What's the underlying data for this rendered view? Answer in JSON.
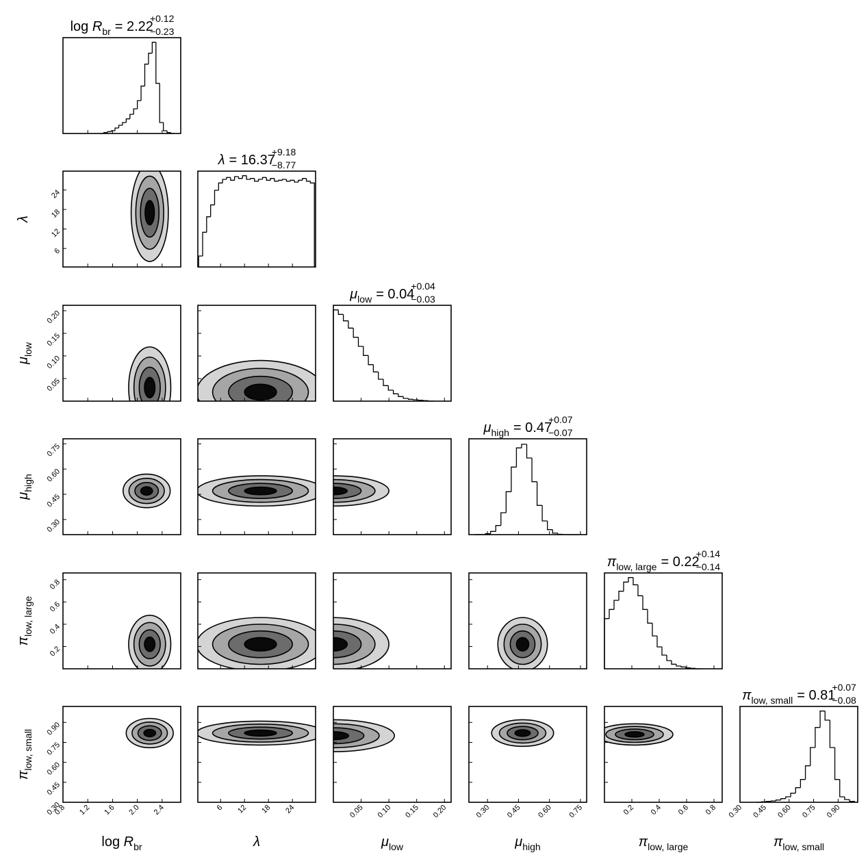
{
  "chart_data": {
    "type": "corner",
    "line_color": "#000000",
    "contour_fills": [
      "#d4d4d4",
      "#a6a6a6",
      "#6c6c6c",
      "#0a0a0a"
    ],
    "parameters": [
      {
        "prefix": "log ",
        "symbol": "R",
        "subscript": "br",
        "title": {
          "median": "= 2.22",
          "upper": "+0.12",
          "lower": "−0.23"
        },
        "lim": [
          0.8,
          2.7
        ],
        "ticks": [
          0.8,
          1.2,
          1.6,
          {
            "value": 2,
            "label": "2.0"
          },
          2.4
        ],
        "histogram": {
          "ylim": [
            0,
            105
          ],
          "bins": [
            1.4,
            1.46,
            1.52,
            1.58,
            1.64,
            1.7,
            1.76,
            1.82,
            1.88,
            1.94,
            2.0,
            2.06,
            2.12,
            2.18,
            2.24,
            2.3,
            2.36,
            2.42,
            2.48,
            2.54,
            2.6
          ],
          "counts": [
            0,
            1,
            2,
            3,
            6,
            9,
            12,
            16,
            21,
            27,
            36,
            52,
            76,
            88,
            100,
            55,
            12,
            3,
            1,
            0
          ]
        }
      },
      {
        "symbol": "λ",
        "title": {
          "median": "= 16.37",
          "upper": "+9.18",
          "lower": "−8.77"
        },
        "lim": [
          0.3,
          29.8
        ],
        "ticks": [
          6,
          12,
          18,
          24
        ],
        "histogram": {
          "ylim": [
            0,
            105
          ],
          "bins": [
            0.5,
            1.5,
            2.5,
            3.5,
            4.5,
            5.5,
            6.5,
            7.5,
            8.5,
            9.5,
            10.5,
            11.5,
            12.5,
            13.5,
            14.5,
            15.5,
            16.5,
            17.5,
            18.5,
            19.5,
            20.5,
            21.5,
            22.5,
            23.5,
            24.5,
            25.5,
            26.5,
            27.5,
            28.5,
            29.5
          ],
          "counts": [
            12,
            38,
            55,
            68,
            84,
            92,
            96,
            98,
            95,
            99,
            97,
            100,
            96,
            97,
            94,
            96,
            98,
            95,
            97,
            94,
            95,
            96,
            94,
            95,
            93,
            95,
            97,
            94,
            92
          ]
        }
      },
      {
        "symbol": "μ",
        "subscript": "low",
        "title": {
          "median": "= 0.04",
          "upper": "+0.04",
          "lower": "−0.03"
        },
        "lim": [
          0,
          0.212
        ],
        "ticks": [
          0.05,
          {
            "value": 0.1,
            "label": "0.10"
          },
          0.15,
          {
            "value": 0.2,
            "label": "0.20"
          }
        ],
        "histogram": {
          "ylim": [
            0,
            105
          ],
          "bins": [
            0,
            0.009,
            0.018,
            0.027,
            0.036,
            0.045,
            0.054,
            0.063,
            0.072,
            0.081,
            0.09,
            0.099,
            0.108,
            0.117,
            0.126,
            0.135,
            0.144,
            0.153,
            0.162,
            0.171,
            0.18
          ],
          "counts": [
            100,
            95,
            88,
            80,
            70,
            60,
            50,
            40,
            32,
            24,
            17,
            12,
            8,
            5,
            3,
            2,
            1.5,
            1,
            0.5,
            0
          ]
        }
      },
      {
        "symbol": "μ",
        "subscript": "high",
        "title": {
          "median": "= 0.47",
          "upper": "+0.07",
          "lower": "−0.07"
        },
        "lim": [
          0.21,
          0.78
        ],
        "ticks": [
          {
            "value": 0.3,
            "label": "0.30"
          },
          0.45,
          {
            "value": 0.6,
            "label": "0.60"
          },
          0.75
        ],
        "histogram": {
          "ylim": [
            0,
            105
          ],
          "bins": [
            0.24,
            0.265,
            0.29,
            0.315,
            0.34,
            0.365,
            0.39,
            0.415,
            0.44,
            0.465,
            0.49,
            0.515,
            0.54,
            0.565,
            0.59,
            0.615,
            0.64,
            0.665,
            0.69,
            0.715,
            0.74
          ],
          "counts": [
            0.04,
            0.2,
            1,
            3.5,
            10,
            24,
            47,
            74,
            95,
            99,
            84,
            58,
            32,
            15,
            5.5,
            1.7,
            0.4,
            0.1,
            0,
            0
          ]
        }
      },
      {
        "symbol": "π",
        "subscript": "low, large",
        "title": {
          "median": "= 0.22",
          "upper": "+0.14",
          "lower": "−0.14"
        },
        "lim": [
          0,
          0.86
        ],
        "ticks": [
          0.2,
          0.4,
          0.6,
          0.8
        ],
        "histogram": {
          "ylim": [
            0,
            105
          ],
          "bins": [
            0,
            0.035,
            0.07,
            0.105,
            0.14,
            0.175,
            0.21,
            0.245,
            0.28,
            0.315,
            0.35,
            0.385,
            0.42,
            0.455,
            0.49,
            0.525,
            0.56,
            0.595,
            0.63,
            0.665,
            0.7
          ],
          "counts": [
            55,
            65,
            75,
            85,
            95,
            100,
            92,
            80,
            65,
            50,
            36,
            24,
            15,
            9,
            5,
            3,
            2,
            1,
            0.5,
            0
          ]
        }
      },
      {
        "symbol": "π",
        "subscript": "low, small",
        "title": {
          "median": "= 0.81",
          "upper": "+0.07",
          "lower": "−0.08"
        },
        "lim": [
          0.3,
          1.02
        ],
        "ticks": [
          {
            "value": 0.3,
            "label": "0.30"
          },
          0.45,
          {
            "value": 0.6,
            "label": "0.60"
          },
          0.75,
          {
            "value": 0.9,
            "label": "0.90"
          }
        ],
        "histogram": {
          "ylim": [
            0,
            105
          ],
          "bins": [
            0.4,
            0.43,
            0.46,
            0.49,
            0.52,
            0.55,
            0.58,
            0.61,
            0.64,
            0.67,
            0.7,
            0.73,
            0.76,
            0.79,
            0.82,
            0.85,
            0.88,
            0.91,
            0.94,
            0.97,
            1.0
          ],
          "counts": [
            0,
            0.5,
            1,
            1.5,
            2.5,
            4,
            6,
            10,
            16,
            25,
            40,
            60,
            82,
            100,
            90,
            60,
            25,
            6,
            3,
            1
          ]
        }
      }
    ],
    "contours": [
      [
        {
          "center": [
            2.2,
            17
          ],
          "spread": [
            0.15,
            7.5
          ]
        }
      ],
      [
        {
          "center": [
            2.2,
            0.03
          ],
          "spread": [
            0.17,
            0.045
          ]
        },
        {
          "center": [
            16,
            0.02
          ],
          "spread": [
            8,
            0.035
          ]
        }
      ],
      [
        {
          "center": [
            2.15,
            0.47
          ],
          "spread": [
            0.19,
            0.05
          ]
        },
        {
          "center": [
            16,
            0.47
          ],
          "spread": [
            8,
            0.045
          ]
        },
        {
          "center": [
            0.0,
            0.47
          ],
          "spread": [
            0.05,
            0.045
          ]
        }
      ],
      [
        {
          "center": [
            2.2,
            0.22
          ],
          "spread": [
            0.17,
            0.13
          ]
        },
        {
          "center": [
            16,
            0.22
          ],
          "spread": [
            8,
            0.12
          ]
        },
        {
          "center": [
            0.0,
            0.22
          ],
          "spread": [
            0.05,
            0.12
          ]
        },
        {
          "center": [
            0.47,
            0.22
          ],
          "spread": [
            0.06,
            0.12
          ]
        }
      ],
      [
        {
          "center": [
            2.2,
            0.82
          ],
          "spread": [
            0.19,
            0.055
          ]
        },
        {
          "center": [
            16,
            0.82
          ],
          "spread": [
            8,
            0.045
          ]
        },
        {
          "center": [
            0.0,
            0.8
          ],
          "spread": [
            0.055,
            0.06
          ]
        },
        {
          "center": [
            0.47,
            0.82
          ],
          "spread": [
            0.075,
            0.05
          ]
        },
        {
          "center": [
            0.22,
            0.81
          ],
          "spread": [
            0.14,
            0.04
          ]
        }
      ]
    ]
  }
}
